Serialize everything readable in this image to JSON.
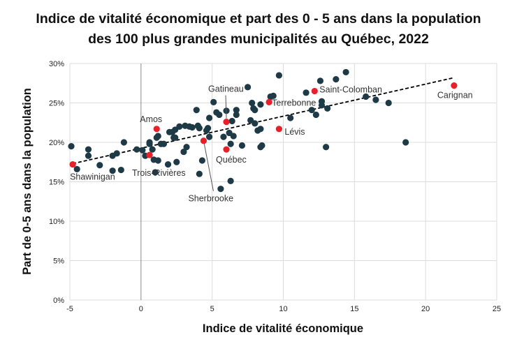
{
  "chart_data": {
    "type": "scatter",
    "title": [
      "Indice de vitalité économique et part des 0 - 5 ans dans la population",
      "des 100 plus grandes municipalités au Québec, 2022"
    ],
    "xlabel": "Indice de vitalité économique",
    "ylabel": "Part de 0-5 ans dans la population",
    "xlim": [
      -5,
      25
    ],
    "ylim": [
      0,
      30
    ],
    "x_ticks": [
      -5,
      0,
      5,
      10,
      15,
      20,
      25
    ],
    "y_ticks": [
      0,
      5,
      10,
      15,
      20,
      25,
      30
    ],
    "y_tick_labels": [
      "0%",
      "5%",
      "10%",
      "15%",
      "20%",
      "25%",
      "30%"
    ],
    "grid": true,
    "colors": {
      "points": "#1e3a47",
      "highlight": "#e8202a",
      "trend": "#000000"
    },
    "trendline": {
      "style": "dashed",
      "from": [
        -4.8,
        17.3
      ],
      "to": [
        22.0,
        28.2
      ]
    },
    "highlighted": [
      {
        "name": "Shawinigan",
        "x": -4.8,
        "y": 17.2
      },
      {
        "name": "Trois-Rivières",
        "x": 0.6,
        "y": 18.4
      },
      {
        "name": "Amos",
        "x": 1.1,
        "y": 21.7
      },
      {
        "name": "Sherbrooke",
        "x": 4.4,
        "y": 20.2
      },
      {
        "name": "Gatineau",
        "x": 6.0,
        "y": 22.6
      },
      {
        "name": "Québec",
        "x": 6.0,
        "y": 19.1
      },
      {
        "name": "Terrebonne",
        "x": 9.0,
        "y": 25.1
      },
      {
        "name": "Lévis",
        "x": 9.7,
        "y": 21.7
      },
      {
        "name": "Saint-Colomban",
        "x": 12.2,
        "y": 26.5
      },
      {
        "name": "Carignan",
        "x": 22.0,
        "y": 27.2
      }
    ],
    "points": [
      [
        -4.9,
        19.5
      ],
      [
        -4.5,
        16.6
      ],
      [
        -3.7,
        19.1
      ],
      [
        -3.7,
        18.3
      ],
      [
        -2.9,
        17.1
      ],
      [
        -2.0,
        18.3
      ],
      [
        -1.7,
        18.6
      ],
      [
        -1.2,
        20.0
      ],
      [
        -2.0,
        16.4
      ],
      [
        -1.4,
        16.5
      ],
      [
        -0.3,
        19.1
      ],
      [
        0.1,
        19.0
      ],
      [
        0.3,
        18.3
      ],
      [
        0.6,
        20.0
      ],
      [
        0.6,
        19.8
      ],
      [
        0.8,
        19.1
      ],
      [
        0.9,
        17.8
      ],
      [
        1.2,
        17.7
      ],
      [
        1.0,
        16.2
      ],
      [
        1.1,
        20.6
      ],
      [
        1.2,
        20.8
      ],
      [
        1.4,
        19.8
      ],
      [
        1.6,
        19.8
      ],
      [
        1.9,
        17.2
      ],
      [
        2.5,
        17.5
      ],
      [
        2.0,
        21.3
      ],
      [
        2.2,
        21.3
      ],
      [
        2.4,
        21.6
      ],
      [
        2.3,
        20.6
      ],
      [
        2.4,
        20.6
      ],
      [
        2.7,
        22.0
      ],
      [
        3.1,
        22.1
      ],
      [
        3.4,
        22.0
      ],
      [
        3.6,
        21.9
      ],
      [
        4.0,
        22.1
      ],
      [
        4.1,
        21.8
      ],
      [
        3.9,
        24.1
      ],
      [
        3.0,
        18.8
      ],
      [
        3.2,
        19.4
      ],
      [
        4.3,
        17.7
      ],
      [
        4.1,
        16.0
      ],
      [
        4.6,
        21.5
      ],
      [
        4.7,
        21.8
      ],
      [
        4.8,
        20.7
      ],
      [
        4.8,
        23.1
      ],
      [
        5.1,
        25.1
      ],
      [
        5.3,
        23.8
      ],
      [
        5.5,
        23.5
      ],
      [
        5.8,
        20.7
      ],
      [
        6.0,
        24.0
      ],
      [
        6.2,
        21.2
      ],
      [
        6.4,
        22.7
      ],
      [
        6.5,
        20.8
      ],
      [
        6.3,
        19.8
      ],
      [
        5.6,
        14.1
      ],
      [
        6.3,
        15.1
      ],
      [
        6.7,
        24.1
      ],
      [
        6.7,
        23.5
      ],
      [
        7.1,
        19.6
      ],
      [
        7.5,
        27.0
      ],
      [
        7.8,
        25.0
      ],
      [
        7.9,
        24.3
      ],
      [
        8.0,
        24.1
      ],
      [
        8.4,
        24.8
      ],
      [
        7.7,
        22.8
      ],
      [
        8.0,
        22.4
      ],
      [
        8.2,
        21.5
      ],
      [
        8.4,
        21.7
      ],
      [
        8.4,
        19.4
      ],
      [
        8.5,
        19.6
      ],
      [
        9.1,
        25.8
      ],
      [
        9.3,
        25.9
      ],
      [
        9.7,
        28.5
      ],
      [
        10.5,
        23.1
      ],
      [
        11.6,
        26.3
      ],
      [
        12.6,
        27.8
      ],
      [
        13.7,
        28.0
      ],
      [
        14.4,
        28.9
      ],
      [
        12.0,
        24.1
      ],
      [
        12.3,
        23.5
      ],
      [
        12.7,
        25.2
      ],
      [
        12.7,
        24.7
      ],
      [
        13.1,
        24.3
      ],
      [
        13.0,
        19.4
      ],
      [
        15.8,
        25.8
      ],
      [
        16.5,
        25.4
      ],
      [
        17.4,
        25.0
      ],
      [
        18.6,
        20.0
      ]
    ]
  }
}
